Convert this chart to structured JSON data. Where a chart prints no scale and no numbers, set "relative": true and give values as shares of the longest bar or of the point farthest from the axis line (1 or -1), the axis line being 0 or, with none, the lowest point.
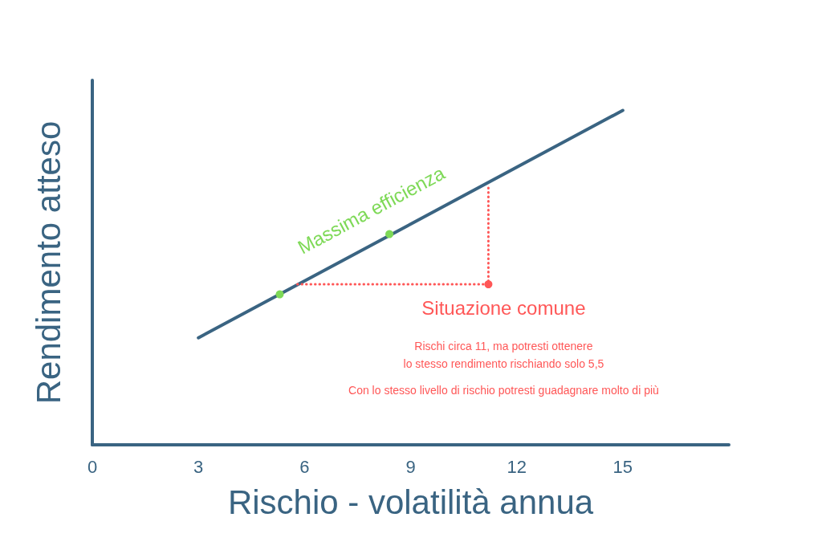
{
  "chart_data": {
    "type": "line",
    "xlabel": "Rischio - volatilità annua",
    "ylabel": "Rendimento atteso",
    "relative": true,
    "xlim": [
      0,
      18
    ],
    "xticks": [
      0,
      3,
      6,
      9,
      12,
      15
    ],
    "tick_labels": "x",
    "series": [
      {
        "color": "#3a6482",
        "x": [
          3,
          15
        ],
        "values": [
          0.32,
          1
        ],
        "marker": "none",
        "line_style": "solid"
      },
      {
        "type": "scatter",
        "color": "#7ed957",
        "x": [
          5.3,
          8.4
        ],
        "values": [
          0.45,
          0.63
        ],
        "marker": "circle"
      },
      {
        "type": "line",
        "color": "#ff5757",
        "x": [
          5.8,
          11.2,
          11.2
        ],
        "values": [
          0.48,
          0.48,
          0.78
        ],
        "marker": "none",
        "line_style": "dotted"
      },
      {
        "type": "scatter",
        "color": "#ff5757",
        "x": [
          11.2
        ],
        "values": [
          0.48
        ],
        "marker": "circle"
      }
    ],
    "annotations": [
      "Massima efficienza",
      "Situazione comune",
      "Rischi circa 11, ma potresti ottenere\nlo stesso rendimento rischiando solo 5,5",
      "Con lo stesso livello di rischio potresti guadagnare molto di più"
    ]
  }
}
